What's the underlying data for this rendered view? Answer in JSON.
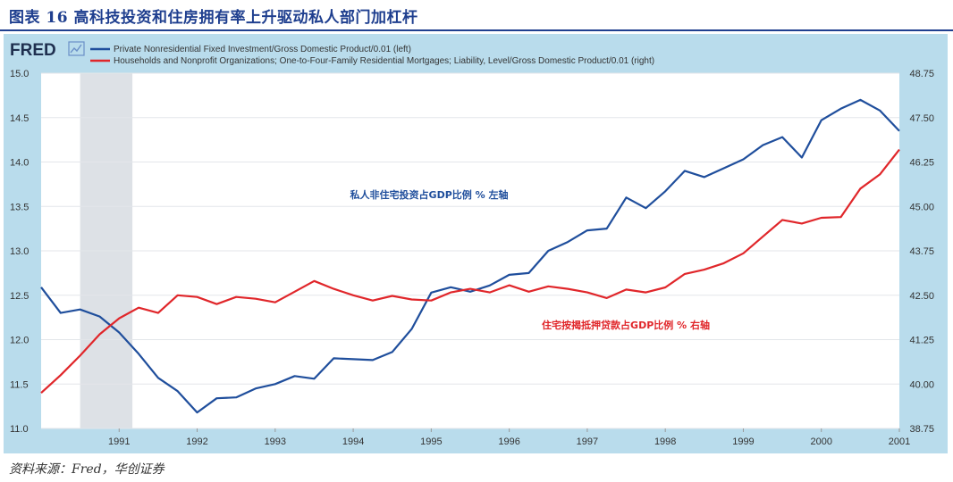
{
  "figure": {
    "title": "图表 16 高科技投资和住房拥有率上升驱动私人部门加杠杆",
    "source": "资料来源：Fred，华创证券"
  },
  "brand": {
    "logo_text": "FRED"
  },
  "colors": {
    "left_series": "#1f4e9c",
    "right_series": "#e0262a",
    "recession": "#dde1e6",
    "frame": "#b9dcec"
  },
  "chart_data": {
    "type": "line",
    "x_tick_labels": [
      "1991",
      "1992",
      "1993",
      "1994",
      "1995",
      "1996",
      "1997",
      "1998",
      "1999",
      "2000",
      "2001"
    ],
    "x_ticks": [
      1991,
      1992,
      1993,
      1994,
      1995,
      1996,
      1997,
      1998,
      1999,
      2000,
      2001
    ],
    "xlim": [
      1990.0,
      2001.0
    ],
    "recession": [
      1990.5,
      1991.17
    ],
    "left_axis": {
      "ylim": [
        11.0,
        15.0
      ],
      "tick_labels": [
        "11.0",
        "11.5",
        "12.0",
        "12.5",
        "13.0",
        "13.5",
        "14.0",
        "14.5",
        "15.0"
      ],
      "ticks": [
        11.0,
        11.5,
        12.0,
        12.5,
        13.0,
        13.5,
        14.0,
        14.5,
        15.0
      ]
    },
    "right_axis": {
      "ylim": [
        38.75,
        48.75
      ],
      "tick_labels": [
        "38.75",
        "40.00",
        "41.25",
        "42.50",
        "43.75",
        "45.00",
        "46.25",
        "47.50",
        "48.75"
      ],
      "ticks": [
        38.75,
        40.0,
        41.25,
        42.5,
        43.75,
        45.0,
        46.25,
        47.5,
        48.75
      ]
    },
    "grid": "horizontal",
    "legend_position": "top",
    "series": [
      {
        "name": "Private Nonresidential Fixed Investment/Gross Domestic Product/0.01 (left)",
        "axis": "left",
        "annotation": "私人非住宅投资占GDP比例 % 左轴",
        "x": [
          1990.0,
          1990.25,
          1990.5,
          1990.75,
          1991.0,
          1991.25,
          1991.5,
          1991.75,
          1992.0,
          1992.25,
          1992.5,
          1992.75,
          1993.0,
          1993.25,
          1993.5,
          1993.75,
          1994.0,
          1994.25,
          1994.5,
          1994.75,
          1995.0,
          1995.25,
          1995.5,
          1995.75,
          1996.0,
          1996.25,
          1996.5,
          1996.75,
          1997.0,
          1997.25,
          1997.5,
          1997.75,
          1998.0,
          1998.25,
          1998.5,
          1998.75,
          1999.0,
          1999.25,
          1999.5,
          1999.75,
          2000.0,
          2000.25,
          2000.5,
          2000.75,
          2001.0
        ],
        "y": [
          12.59,
          12.3,
          12.34,
          12.26,
          12.08,
          11.84,
          11.57,
          11.42,
          11.18,
          11.34,
          11.35,
          11.45,
          11.5,
          11.59,
          11.56,
          11.79,
          11.78,
          11.77,
          11.86,
          12.12,
          12.53,
          12.59,
          12.54,
          12.61,
          12.73,
          12.75,
          13.0,
          13.1,
          13.23,
          13.25,
          13.6,
          13.48,
          13.67,
          13.9,
          13.83,
          13.93,
          14.03,
          14.19,
          14.28,
          14.05,
          14.47,
          14.6,
          14.7,
          14.58,
          14.35
        ]
      },
      {
        "name": "Households and Nonprofit Organizations; One-to-Four-Family Residential Mortgages; Liability, Level/Gross Domestic Product/0.01 (right)",
        "axis": "right",
        "annotation": "住宅按揭抵押贷款占GDP比例 % 右轴",
        "x": [
          1990.0,
          1990.25,
          1990.5,
          1990.75,
          1991.0,
          1991.25,
          1991.5,
          1991.75,
          1992.0,
          1992.25,
          1992.5,
          1992.75,
          1993.0,
          1993.25,
          1993.5,
          1993.75,
          1994.0,
          1994.25,
          1994.5,
          1994.75,
          1995.0,
          1995.25,
          1995.5,
          1995.75,
          1996.0,
          1996.25,
          1996.5,
          1996.75,
          1997.0,
          1997.25,
          1997.5,
          1997.75,
          1998.0,
          1998.25,
          1998.5,
          1998.75,
          1999.0,
          1999.25,
          1999.5,
          1999.75,
          2000.0,
          2000.25,
          2000.5,
          2000.75,
          2001.0
        ],
        "y": [
          39.75,
          40.25,
          40.8,
          41.4,
          41.85,
          42.15,
          42.0,
          42.5,
          42.45,
          42.25,
          42.45,
          42.4,
          42.3,
          42.6,
          42.9,
          42.68,
          42.5,
          42.35,
          42.48,
          42.38,
          42.35,
          42.58,
          42.68,
          42.58,
          42.78,
          42.6,
          42.75,
          42.68,
          42.58,
          42.42,
          42.66,
          42.58,
          42.72,
          43.1,
          43.22,
          43.4,
          43.68,
          44.15,
          44.62,
          44.52,
          44.68,
          44.7,
          45.5,
          45.9,
          46.6
        ]
      }
    ]
  }
}
